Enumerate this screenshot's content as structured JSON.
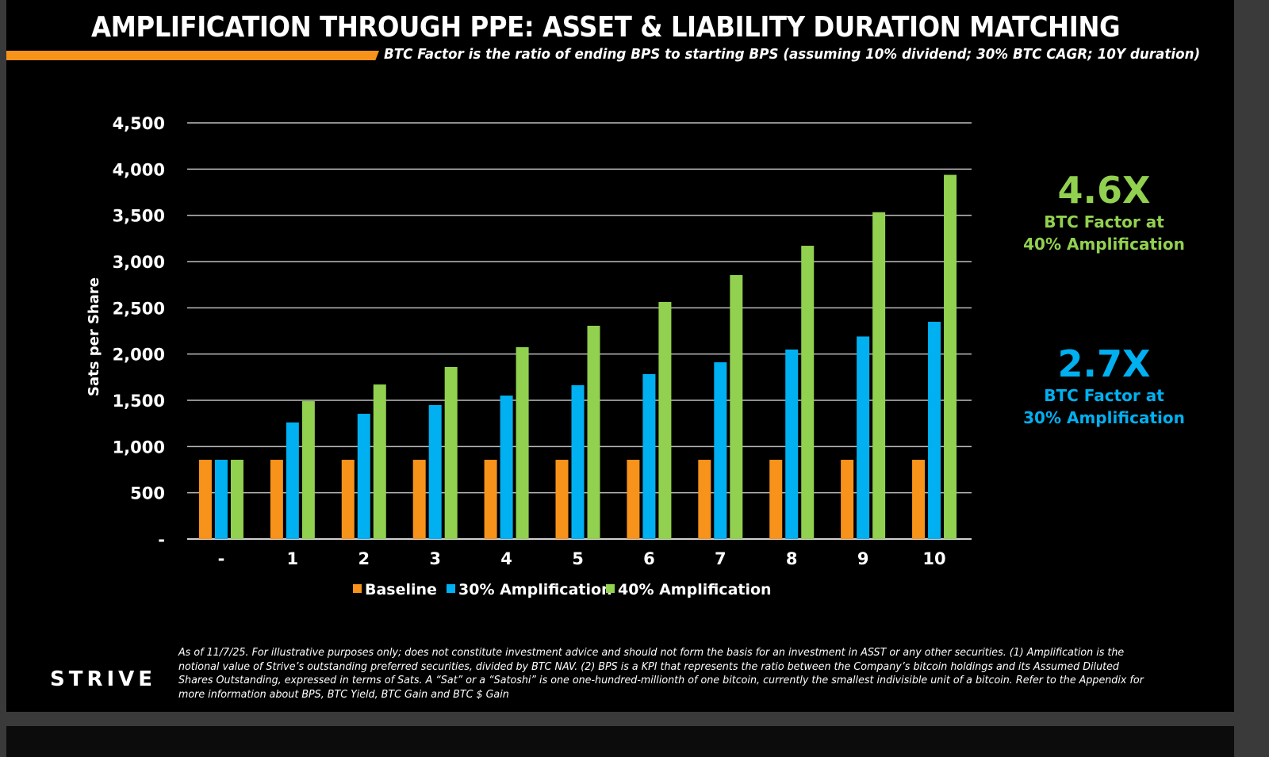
{
  "header": {
    "title": "AMPLIFICATION THROUGH PPE: ASSET & LIABILITY DURATION MATCHING",
    "subtitle_bold": "BTC Factor",
    "subtitle_rest": " is the ratio of ending BPS to starting BPS (assuming 10% dividend; 30% BTC CAGR; 10Y duration)"
  },
  "chart_data": {
    "type": "bar",
    "title": "",
    "xlabel": "",
    "ylabel": "Sats per Share",
    "ylim": [
      0,
      4500
    ],
    "grid": true,
    "legend_position": "bottom",
    "categories": [
      "-",
      "1",
      "2",
      "3",
      "4",
      "5",
      "6",
      "7",
      "8",
      "9",
      "10"
    ],
    "y_ticks": [
      "-",
      "500",
      "1,000",
      "1,500",
      "2,000",
      "2,500",
      "3,000",
      "3,500",
      "4,000",
      "4,500"
    ],
    "series": [
      {
        "name": "Baseline",
        "color": "#F7931A",
        "values": [
          857,
          857,
          857,
          857,
          857,
          857,
          857,
          857,
          857,
          857,
          857
        ]
      },
      {
        "name": "30% Amplification",
        "color": "#00B0F0",
        "values": [
          857,
          1260,
          1354,
          1449,
          1551,
          1663,
          1783,
          1911,
          2049,
          2190,
          2349
        ]
      },
      {
        "name": "40% Amplification",
        "color": "#92D050",
        "values": [
          857,
          1491,
          1671,
          1860,
          2074,
          2306,
          2563,
          2854,
          3171,
          3534,
          3938
        ]
      }
    ]
  },
  "callouts": [
    {
      "value": "4.6X",
      "label1": "BTC Factor at",
      "label2": "40% Amplification",
      "color": "#92D050"
    },
    {
      "value": "2.7X",
      "label1": "BTC Factor at",
      "label2": "30% Amplification",
      "color": "#00B0F0"
    }
  ],
  "footer": {
    "logo": "STRIVE",
    "disclaimer": "As of 11/7/25. For illustrative purposes only; does not constitute investment advice and should not form the basis for an investment in ASST or any other securities. (1) Amplification is the notional value of Strive’s outstanding preferred securities, divided by BTC NAV. (2) BPS is a KPI that represents the ratio between the Company’s bitcoin holdings and its Assumed Diluted Shares Outstanding, expressed in terms of Sats. A “Sat” or a “Satoshi” is one one-hundred-millionth of one bitcoin, currently the smallest indivisible unit of a bitcoin. Refer to the Appendix for more information about BPS, BTC Yield, BTC Gain and BTC $ Gain"
  }
}
